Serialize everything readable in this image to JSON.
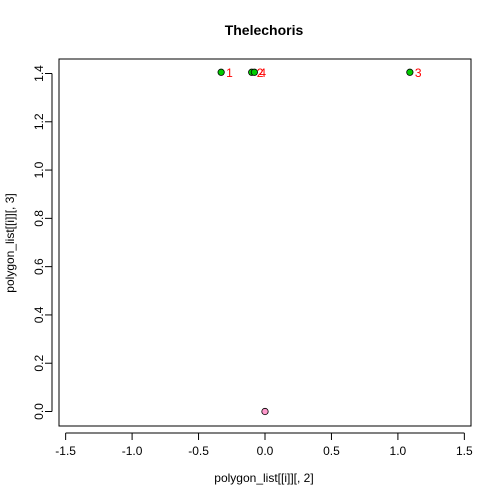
{
  "chart_data": {
    "type": "scatter",
    "title": "Thelechoris",
    "xlabel": "polygon_list[[i]][, 2]",
    "ylabel": "polygon_list[[i]][, 3]",
    "xlim": [
      -1.55,
      1.55
    ],
    "ylim": [
      -0.06,
      1.46
    ],
    "xticks": [
      -1.5,
      -1.0,
      -0.5,
      0.0,
      0.5,
      1.0,
      1.5
    ],
    "xtick_labels": [
      "-1.5",
      "-1.0",
      "-0.5",
      "0.0",
      "0.5",
      "1.0",
      "1.5"
    ],
    "yticks": [
      0.0,
      0.2,
      0.4,
      0.6,
      0.8,
      1.0,
      1.2,
      1.4
    ],
    "ytick_labels": [
      "0.0",
      "0.2",
      "0.4",
      "0.6",
      "0.8",
      "1.0",
      "1.2",
      "1.4"
    ],
    "grid": false,
    "legend": false,
    "colors": {
      "highlight": "#00cc00",
      "origin": "#ff99cc",
      "label": "#ff0000",
      "outline": "#000000"
    },
    "points": [
      {
        "x": -0.33,
        "y": 1.405,
        "fill": "#00cc00",
        "label": "1"
      },
      {
        "x": -0.1,
        "y": 1.405,
        "fill": "#00cc00",
        "label": "2"
      },
      {
        "x": -0.08,
        "y": 1.405,
        "fill": "#00cc00",
        "label": "4"
      },
      {
        "x": 1.09,
        "y": 1.405,
        "fill": "#00cc00",
        "label": "3"
      },
      {
        "x": 0.0,
        "y": 0.0,
        "fill": "#ff99cc",
        "label": ""
      }
    ]
  }
}
